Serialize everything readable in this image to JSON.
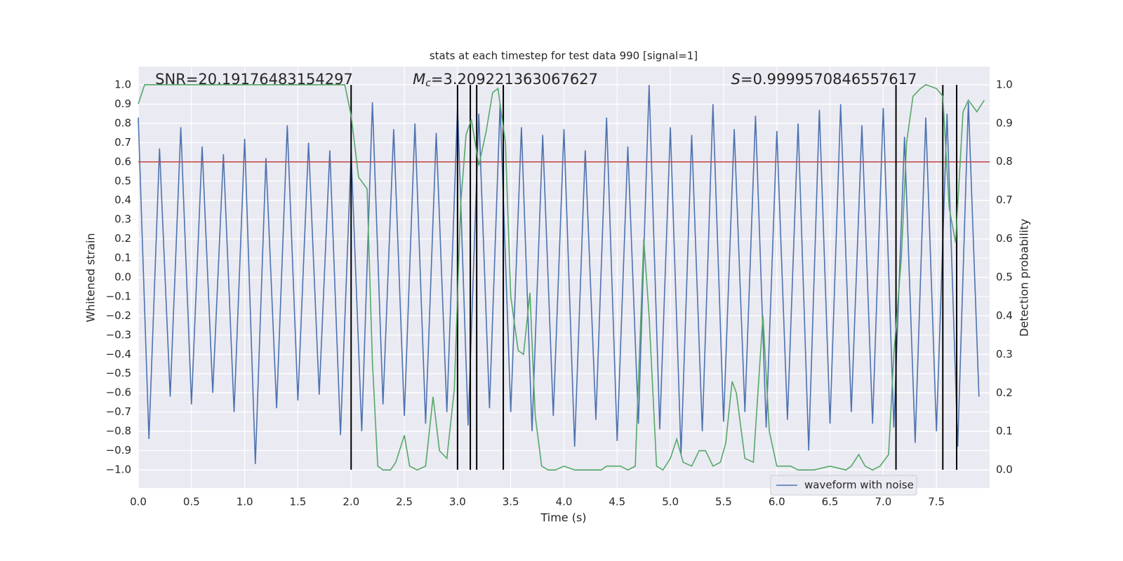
{
  "chart_data": {
    "type": "line",
    "title": "stats at each timestep for test data 990 [signal=1]",
    "xlabel": "Time (s)",
    "ylabel": "Whitened strain",
    "y2label": "Detection probability",
    "xlim": [
      0,
      8
    ],
    "ylim": [
      -1.095,
      1.095
    ],
    "y2lim": [
      -0.047,
      1.047
    ],
    "xticks": [
      {
        "value": 0,
        "label": "0.0"
      },
      {
        "value": 0.5,
        "label": "0.5"
      },
      {
        "value": 1,
        "label": "1.0"
      },
      {
        "value": 1.5,
        "label": "1.5"
      },
      {
        "value": 2,
        "label": "2.0"
      },
      {
        "value": 2.5,
        "label": "2.5"
      },
      {
        "value": 3,
        "label": "3.0"
      },
      {
        "value": 3.5,
        "label": "3.5"
      },
      {
        "value": 4,
        "label": "4.0"
      },
      {
        "value": 4.5,
        "label": "4.5"
      },
      {
        "value": 5,
        "label": "5.0"
      },
      {
        "value": 5.5,
        "label": "5.5"
      },
      {
        "value": 6,
        "label": "6.0"
      },
      {
        "value": 6.5,
        "label": "6.5"
      },
      {
        "value": 7,
        "label": "7.0"
      },
      {
        "value": 7.5,
        "label": "7.5"
      }
    ],
    "yticks": [
      {
        "value": 1,
        "label": "1.0"
      },
      {
        "value": 0.9,
        "label": "0.9"
      },
      {
        "value": 0.8,
        "label": "0.8"
      },
      {
        "value": 0.7,
        "label": "0.7"
      },
      {
        "value": 0.6,
        "label": "0.6"
      },
      {
        "value": 0.5,
        "label": "0.5"
      },
      {
        "value": 0.4,
        "label": "0.4"
      },
      {
        "value": 0.3,
        "label": "0.3"
      },
      {
        "value": 0.2,
        "label": "0.2"
      },
      {
        "value": 0.1,
        "label": "0.1"
      },
      {
        "value": 0,
        "label": "0.0"
      },
      {
        "value": -0.1,
        "label": "−0.1"
      },
      {
        "value": -0.2,
        "label": "−0.2"
      },
      {
        "value": -0.3,
        "label": "−0.3"
      },
      {
        "value": -0.4,
        "label": "−0.4"
      },
      {
        "value": -0.5,
        "label": "−0.5"
      },
      {
        "value": -0.6,
        "label": "−0.6"
      },
      {
        "value": -0.7,
        "label": "−0.7"
      },
      {
        "value": -0.8,
        "label": "−0.8"
      },
      {
        "value": -0.9,
        "label": "−0.9"
      },
      {
        "value": -1,
        "label": "−1.0"
      }
    ],
    "y2ticks": [
      {
        "value": 1,
        "label": "1.0"
      },
      {
        "value": 0.9,
        "label": "0.9"
      },
      {
        "value": 0.8,
        "label": "0.8"
      },
      {
        "value": 0.7,
        "label": "0.7"
      },
      {
        "value": 0.6,
        "label": "0.6"
      },
      {
        "value": 0.5,
        "label": "0.5"
      },
      {
        "value": 0.4,
        "label": "0.4"
      },
      {
        "value": 0.3,
        "label": "0.3"
      },
      {
        "value": 0.2,
        "label": "0.2"
      },
      {
        "value": 0.1,
        "label": "0.1"
      },
      {
        "value": 0,
        "label": "0.0"
      }
    ],
    "grid": true,
    "legend_loc": "lower right",
    "series": [
      {
        "name": "waveform with noise",
        "color": "#4c72b0",
        "x": [
          0,
          0.1,
          0.2,
          0.3,
          0.4,
          0.5,
          0.6,
          0.7,
          0.8,
          0.9,
          1,
          1.1,
          1.2,
          1.3,
          1.4,
          1.5,
          1.6,
          1.7,
          1.8,
          1.9,
          2,
          2.1,
          2.2,
          2.3,
          2.4,
          2.5,
          2.6,
          2.7,
          2.8,
          2.9,
          3,
          3.1,
          3.2,
          3.3,
          3.4,
          3.5,
          3.6,
          3.7,
          3.8,
          3.9,
          4,
          4.1,
          4.2,
          4.3,
          4.4,
          4.5,
          4.6,
          4.7,
          4.8,
          4.9,
          5,
          5.1,
          5.2,
          5.3,
          5.4,
          5.5,
          5.6,
          5.7,
          5.8,
          5.9,
          6,
          6.1,
          6.2,
          6.3,
          6.4,
          6.5,
          6.6,
          6.7,
          6.8,
          6.9,
          7,
          7.1,
          7.2,
          7.3,
          7.4,
          7.5,
          7.6,
          7.7,
          7.8,
          7.9
        ],
        "values": [
          0.83,
          -0.84,
          0.67,
          -0.62,
          0.78,
          -0.66,
          0.68,
          -0.6,
          0.64,
          -0.7,
          0.72,
          -0.97,
          0.62,
          -0.68,
          0.79,
          -0.64,
          0.7,
          -0.61,
          0.66,
          -0.82,
          0.65,
          -0.8,
          0.91,
          -0.66,
          0.77,
          -0.72,
          0.8,
          -0.76,
          0.75,
          -0.7,
          0.89,
          -0.77,
          0.85,
          -0.68,
          0.9,
          -0.7,
          0.78,
          -0.8,
          0.74,
          -0.72,
          0.77,
          -0.88,
          0.66,
          -0.74,
          0.83,
          -0.85,
          0.68,
          -0.76,
          1.0,
          -0.79,
          0.78,
          -0.92,
          0.74,
          -0.8,
          0.9,
          -0.75,
          0.77,
          -0.7,
          0.84,
          -0.78,
          0.76,
          -0.74,
          0.8,
          -0.9,
          0.87,
          -0.76,
          0.9,
          -0.7,
          0.79,
          -0.76,
          0.88,
          -0.78,
          0.73,
          -0.86,
          0.83,
          -0.8,
          0.85,
          -0.88,
          0.91,
          -0.62
        ]
      },
      {
        "color": "#55a868",
        "axis": "y2",
        "x": [
          0,
          0.06,
          1.94,
          2,
          2.07,
          2.15,
          2.2,
          2.25,
          2.3,
          2.37,
          2.42,
          2.5,
          2.55,
          2.62,
          2.7,
          2.77,
          2.83,
          2.9,
          2.97,
          3.03,
          3.08,
          3.13,
          3.2,
          3.27,
          3.33,
          3.38,
          3.45,
          3.5,
          3.57,
          3.62,
          3.68,
          3.73,
          3.79,
          3.85,
          3.92,
          4,
          4.1,
          4.2,
          4.35,
          4.4,
          4.48,
          4.53,
          4.6,
          4.67,
          4.75,
          4.8,
          4.87,
          4.93,
          5,
          5.06,
          5.12,
          5.2,
          5.27,
          5.33,
          5.4,
          5.47,
          5.52,
          5.58,
          5.62,
          5.7,
          5.78,
          5.87,
          5.93,
          6,
          6.07,
          6.13,
          6.2,
          6.35,
          6.5,
          6.65,
          6.7,
          6.77,
          6.83,
          6.9,
          6.97,
          7.05,
          7.1,
          7.17,
          7.22,
          7.28,
          7.35,
          7.4,
          7.5,
          7.56,
          7.62,
          7.68,
          7.75,
          7.8,
          7.88,
          7.95
        ],
        "values": [
          0.95,
          1,
          1,
          0.92,
          0.76,
          0.73,
          0.28,
          0.01,
          0,
          0,
          0.02,
          0.09,
          0.01,
          0,
          0.01,
          0.19,
          0.05,
          0.03,
          0.21,
          0.69,
          0.87,
          0.91,
          0.79,
          0.88,
          0.98,
          0.99,
          0.85,
          0.45,
          0.31,
          0.3,
          0.46,
          0.14,
          0.01,
          0,
          0,
          0.01,
          0,
          0,
          0,
          0.01,
          0.01,
          0.01,
          0,
          0.01,
          0.6,
          0.4,
          0.01,
          0,
          0.03,
          0.08,
          0.02,
          0.01,
          0.05,
          0.05,
          0.01,
          0.02,
          0.07,
          0.23,
          0.2,
          0.03,
          0.02,
          0.4,
          0.1,
          0.01,
          0.01,
          0.01,
          0,
          0,
          0.01,
          0,
          0.01,
          0.04,
          0.01,
          0,
          0.01,
          0.04,
          0.3,
          0.55,
          0.85,
          0.97,
          0.99,
          1,
          0.99,
          0.97,
          0.68,
          0.59,
          0.93,
          0.96,
          0.93,
          0.96
        ]
      }
    ],
    "hline": {
      "y": 0.6,
      "color": "#c44e52"
    },
    "vlines": {
      "x": [
        2,
        3,
        3.12,
        3.18,
        3.43,
        7.12,
        7.56,
        7.69
      ],
      "ymin": -1,
      "ymax": 1,
      "color": "#000000"
    },
    "annotations": [
      {
        "text": "SNR=20.19176483154297"
      },
      {
        "math": "M",
        "sub": "c",
        "text": "=3.209221363067627"
      },
      {
        "math": "S",
        "text": "=0.9999570846557617"
      }
    ]
  }
}
